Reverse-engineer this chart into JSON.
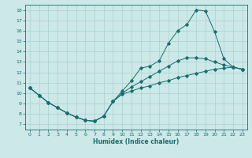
{
  "xlabel": "Humidex (Indice chaleur)",
  "bg_color": "#cce8e8",
  "line_color": "#1a6e6e",
  "grid_color": "#aad0d0",
  "xlim": [
    -0.5,
    23.5
  ],
  "ylim": [
    6.5,
    18.5
  ],
  "xticks": [
    0,
    1,
    2,
    3,
    4,
    5,
    6,
    7,
    8,
    9,
    10,
    11,
    12,
    13,
    14,
    15,
    16,
    17,
    18,
    19,
    20,
    21,
    22,
    23
  ],
  "yticks": [
    7,
    8,
    9,
    10,
    11,
    12,
    13,
    14,
    15,
    16,
    17,
    18
  ],
  "line1_x": [
    0,
    1,
    2,
    3,
    4,
    5,
    6,
    7,
    8,
    9,
    10,
    11,
    12,
    13,
    14,
    15,
    16,
    17,
    18,
    19,
    20,
    21,
    22,
    23
  ],
  "line1_y": [
    10.5,
    9.8,
    9.1,
    8.6,
    8.1,
    7.7,
    7.4,
    7.3,
    7.8,
    9.2,
    9.9,
    10.2,
    10.5,
    10.7,
    11.0,
    11.2,
    11.5,
    11.7,
    11.9,
    12.1,
    12.3,
    12.4,
    12.5,
    12.3
  ],
  "line2_x": [
    0,
    1,
    2,
    3,
    4,
    5,
    6,
    7,
    8,
    9,
    10,
    11,
    12,
    13,
    14,
    15,
    16,
    17,
    18,
    19,
    20,
    21,
    22,
    23
  ],
  "line2_y": [
    10.5,
    9.8,
    9.1,
    8.6,
    8.1,
    7.7,
    7.4,
    7.3,
    7.8,
    9.2,
    10.2,
    11.2,
    12.4,
    12.6,
    13.1,
    14.8,
    16.0,
    16.6,
    18.0,
    17.9,
    15.9,
    13.3,
    12.5,
    12.3
  ],
  "line3_x": [
    0,
    1,
    2,
    3,
    4,
    5,
    6,
    7,
    8,
    9,
    10,
    11,
    12,
    13,
    14,
    15,
    16,
    17,
    18,
    19,
    20,
    21,
    22,
    23
  ],
  "line3_y": [
    10.5,
    9.8,
    9.1,
    8.6,
    8.1,
    7.7,
    7.4,
    7.3,
    7.8,
    9.2,
    10.0,
    10.6,
    11.1,
    11.6,
    12.1,
    12.6,
    13.1,
    13.4,
    13.4,
    13.3,
    13.0,
    12.7,
    12.5,
    12.3
  ]
}
